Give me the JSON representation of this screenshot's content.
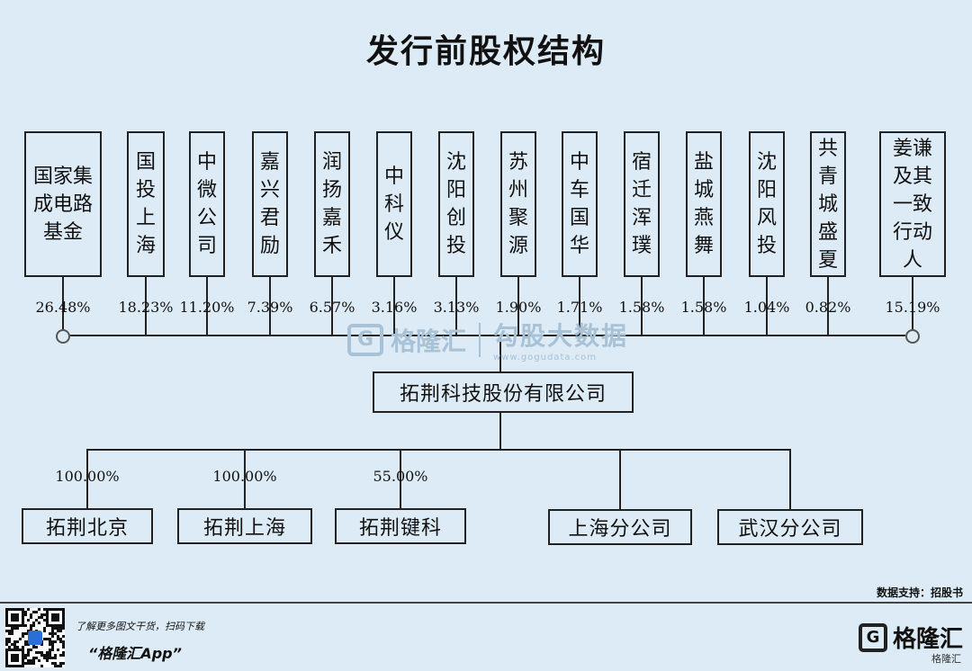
{
  "title": "发行前股权结构",
  "shareholders": [
    {
      "name": "国家集成电路基金",
      "pct": "26.48%"
    },
    {
      "name": "国投上海",
      "pct": "18.23%"
    },
    {
      "name": "中微公司",
      "pct": "11.20%"
    },
    {
      "name": "嘉兴君励",
      "pct": "7.39%"
    },
    {
      "name": "润扬嘉禾",
      "pct": "6.57%"
    },
    {
      "name": "中科仪",
      "pct": "3.16%"
    },
    {
      "name": "沈阳创投",
      "pct": "3.13%"
    },
    {
      "name": "苏州聚源",
      "pct": "1.90%"
    },
    {
      "name": "中车国华",
      "pct": "1.71%"
    },
    {
      "name": "宿迁浑璞",
      "pct": "1.58%"
    },
    {
      "name": "盐城燕舞",
      "pct": "1.58%"
    },
    {
      "name": "沈阳风投",
      "pct": "1.04%"
    },
    {
      "name": "共青城盛夏",
      "pct": "0.82%"
    },
    {
      "name": "姜谦及其一致行动人",
      "pct": "15.19%"
    }
  ],
  "company": "拓荆科技股份有限公司",
  "subsidiaries": [
    {
      "name": "拓荆北京",
      "pct": "100.00%"
    },
    {
      "name": "拓荆上海",
      "pct": "100.00%"
    },
    {
      "name": "拓荆键科",
      "pct": "55.00%"
    }
  ],
  "branches": [
    {
      "name": "上海分公司"
    },
    {
      "name": "武汉分公司"
    }
  ],
  "watermark": {
    "brand": "格隆汇",
    "brand_cn": "勾股大数据",
    "url": "www.gogudata.com",
    "g": "G"
  },
  "source": "数据支持：招股书",
  "footer": {
    "tip": "了解更多图文干货，扫码下载",
    "app": "“格隆汇App”",
    "logo": "格隆汇",
    "logo_sub": "格隆汇"
  }
}
